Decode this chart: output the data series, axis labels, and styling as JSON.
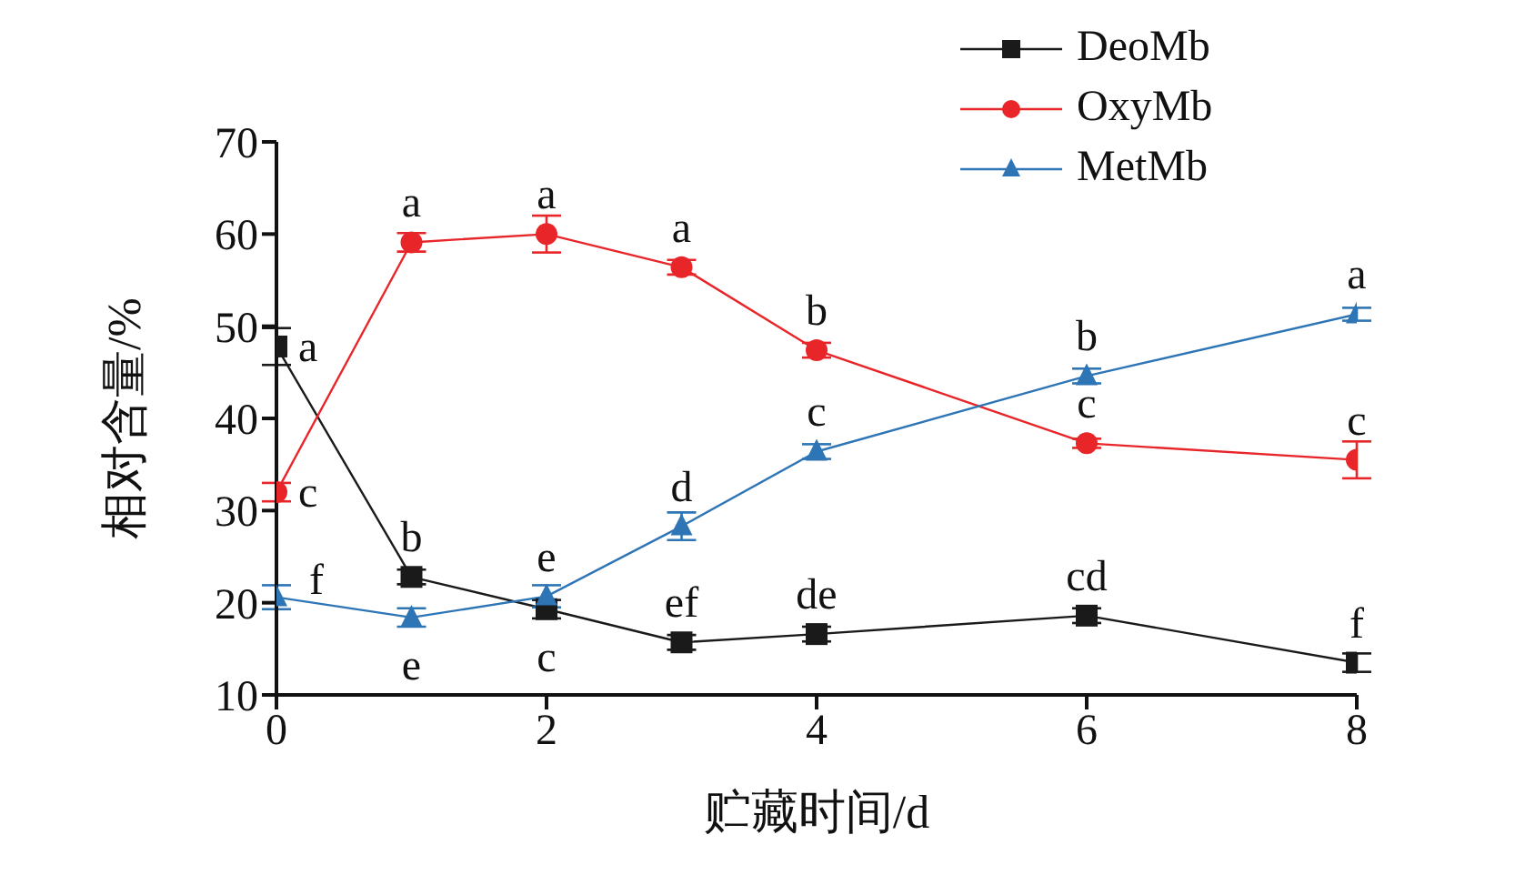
{
  "chart_data": {
    "type": "line",
    "xlabel": "贮藏时间/d",
    "ylabel": "相对含量/%",
    "x": [
      0,
      1,
      2,
      3,
      4,
      6,
      8
    ],
    "xlim": [
      0,
      8
    ],
    "xticks": [
      0,
      2,
      4,
      6,
      8
    ],
    "ylim": [
      10,
      70
    ],
    "yticks": [
      10,
      20,
      30,
      40,
      50,
      60,
      70
    ],
    "grid": false,
    "legend": "top right",
    "series": [
      {
        "name": "DeoMb",
        "color": "#1a1a1a",
        "marker": "square",
        "values": [
          47.8,
          22.8,
          19.3,
          15.7,
          16.6,
          18.6,
          13.5
        ],
        "errors": [
          2,
          0.8,
          1,
          0.8,
          0.8,
          0.8,
          1
        ]
      },
      {
        "name": "OxyMb",
        "color": "#e8262a",
        "marker": "circle",
        "values": [
          32.0,
          59.1,
          60.0,
          56.4,
          47.4,
          37.3,
          35.5
        ],
        "errors": [
          1,
          1,
          2,
          0.8,
          0.8,
          0.5,
          2
        ]
      },
      {
        "name": "MetMb",
        "color": "#2e75b6",
        "marker": "triangle",
        "values": [
          20.6,
          18.4,
          20.7,
          28.3,
          36.4,
          44.6,
          51.3
        ],
        "errors": [
          1.3,
          1,
          1.2,
          1.5,
          0.8,
          0.8,
          0.7
        ]
      }
    ],
    "annotations": [
      {
        "text": "a",
        "x": 0,
        "y": 47.8
      },
      {
        "text": "b",
        "x": 1,
        "y": 22.8
      },
      {
        "text": "c",
        "x": 2,
        "y": 19.3
      },
      {
        "text": "ef",
        "x": 3,
        "y": 15.7
      },
      {
        "text": "de",
        "x": 4,
        "y": 16.6
      },
      {
        "text": "cd",
        "x": 6,
        "y": 18.6
      },
      {
        "text": "f",
        "x": 8,
        "y": 13.5
      },
      {
        "text": "c",
        "x": 0,
        "y": 32.0
      },
      {
        "text": "a",
        "x": 1,
        "y": 59.1
      },
      {
        "text": "a",
        "x": 2,
        "y": 60.0
      },
      {
        "text": "a",
        "x": 3,
        "y": 56.4
      },
      {
        "text": "b",
        "x": 4,
        "y": 47.4
      },
      {
        "text": "c",
        "x": 6,
        "y": 37.3
      },
      {
        "text": "c",
        "x": 8,
        "y": 35.5
      },
      {
        "text": "f",
        "x": 0,
        "y": 20.6
      },
      {
        "text": "e",
        "x": 1,
        "y": 18.4
      },
      {
        "text": "e",
        "x": 2,
        "y": 20.7
      },
      {
        "text": "d",
        "x": 3,
        "y": 28.3
      },
      {
        "text": "c",
        "x": 4,
        "y": 36.4
      },
      {
        "text": "b",
        "x": 6,
        "y": 44.6
      },
      {
        "text": "a",
        "x": 8,
        "y": 51.3
      }
    ]
  }
}
